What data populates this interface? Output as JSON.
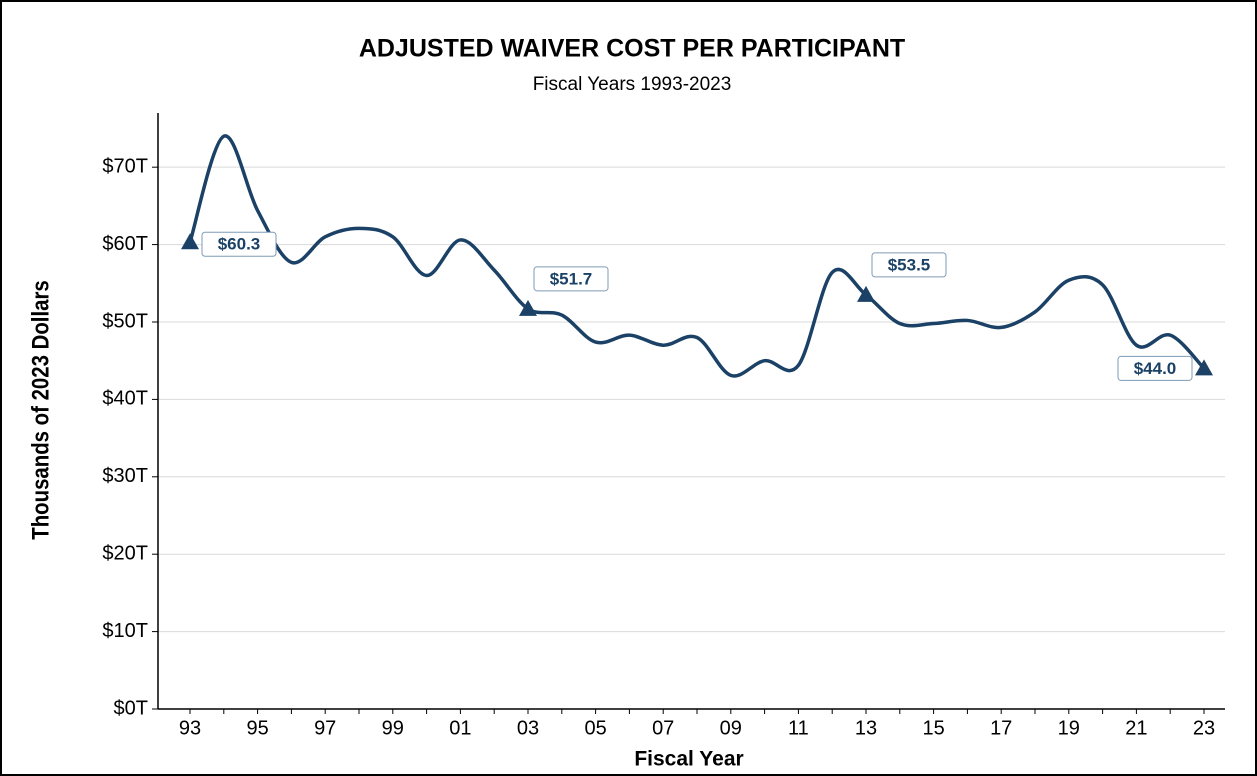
{
  "chart_data": {
    "type": "line",
    "title": "ADJUSTED WAIVER COST PER PARTICIPANT",
    "subtitle": "Fiscal Years 1993-2023",
    "x_label": "Fiscal Year",
    "y_label": "Thousands of 2023 Dollars",
    "categories": [
      "93",
      null,
      "95",
      null,
      "97",
      null,
      "99",
      null,
      "01",
      null,
      "03",
      null,
      "05",
      null,
      "07",
      null,
      "09",
      null,
      "11",
      null,
      "13",
      null,
      "15",
      null,
      "17",
      null,
      "19",
      null,
      "21",
      null,
      "23"
    ],
    "series": [
      {
        "name": "Adjusted waiver cost per participant",
        "color": "#1b4266",
        "values": [
          60.3,
          74,
          64.4,
          57.7,
          61,
          62.1,
          61,
          56,
          60.6,
          56.7,
          51.7,
          50.9,
          47.4,
          48.3,
          47,
          48,
          43.1,
          45,
          44.4,
          56.4,
          53.5,
          49.8,
          49.8,
          50.2,
          49.3,
          51.3,
          55.4,
          54.8,
          47,
          48.3,
          44
        ],
        "value_labels": [
          "$60.3",
          null,
          null,
          null,
          null,
          null,
          null,
          null,
          null,
          null,
          "$51.7",
          null,
          null,
          null,
          null,
          null,
          null,
          null,
          null,
          null,
          "$53.5",
          null,
          null,
          null,
          null,
          null,
          null,
          null,
          null,
          null,
          "$44.0"
        ]
      }
    ],
    "ylim": [
      0,
      77
    ],
    "yticks": [
      {
        "value": 0,
        "label": "$0T"
      },
      {
        "value": 10,
        "label": "$10T"
      },
      {
        "value": 20,
        "label": "$20T"
      },
      {
        "value": 30,
        "label": "$30T"
      },
      {
        "value": 40,
        "label": "$40T"
      },
      {
        "value": 50,
        "label": "$50T"
      },
      {
        "value": 60,
        "label": "$60T"
      },
      {
        "value": 70,
        "label": "$70T"
      }
    ],
    "grid": true,
    "legend": false
  }
}
